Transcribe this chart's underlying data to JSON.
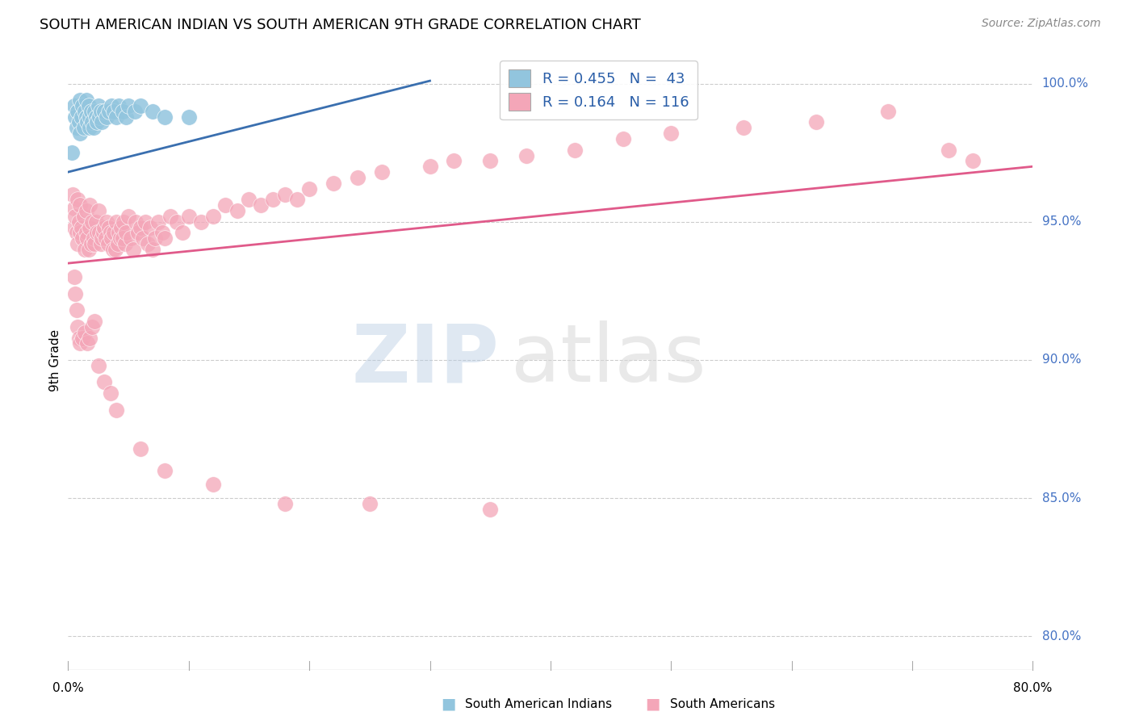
{
  "title": "SOUTH AMERICAN INDIAN VS SOUTH AMERICAN 9TH GRADE CORRELATION CHART",
  "source": "Source: ZipAtlas.com",
  "ylabel": "9th Grade",
  "xmin": 0.0,
  "xmax": 0.8,
  "ymin": 0.788,
  "ymax": 1.012,
  "yticks": [
    0.8,
    0.85,
    0.9,
    0.95,
    1.0
  ],
  "ytick_labels": [
    "80.0%",
    "85.0%",
    "90.0%",
    "95.0%",
    "100.0%"
  ],
  "legend_blue_label_r": "0.455",
  "legend_blue_label_n": "43",
  "legend_pink_label_r": "0.164",
  "legend_pink_label_n": "116",
  "legend_bottom_blue": "South American Indians",
  "legend_bottom_pink": "South Americans",
  "blue_color": "#92c5de",
  "pink_color": "#f4a6b8",
  "blue_line_color": "#3a6faf",
  "pink_line_color": "#e05a8a",
  "blue_scatter_x": [
    0.003,
    0.005,
    0.006,
    0.007,
    0.008,
    0.009,
    0.01,
    0.01,
    0.011,
    0.012,
    0.013,
    0.014,
    0.015,
    0.015,
    0.016,
    0.017,
    0.018,
    0.018,
    0.019,
    0.02,
    0.021,
    0.022,
    0.023,
    0.024,
    0.025,
    0.026,
    0.027,
    0.028,
    0.03,
    0.032,
    0.034,
    0.036,
    0.038,
    0.04,
    0.042,
    0.045,
    0.048,
    0.05,
    0.055,
    0.06,
    0.07,
    0.08,
    0.1
  ],
  "blue_scatter_y": [
    0.975,
    0.992,
    0.988,
    0.984,
    0.99,
    0.986,
    0.994,
    0.982,
    0.988,
    0.992,
    0.984,
    0.99,
    0.988,
    0.994,
    0.986,
    0.992,
    0.988,
    0.984,
    0.99,
    0.986,
    0.984,
    0.99,
    0.988,
    0.986,
    0.992,
    0.988,
    0.99,
    0.986,
    0.99,
    0.988,
    0.99,
    0.992,
    0.99,
    0.988,
    0.992,
    0.99,
    0.988,
    0.992,
    0.99,
    0.992,
    0.99,
    0.988,
    0.988
  ],
  "blue_line_x0": 0.0,
  "blue_line_x1": 0.3,
  "blue_line_y0": 0.968,
  "blue_line_y1": 1.001,
  "pink_line_x0": 0.0,
  "pink_line_x1": 0.8,
  "pink_line_y0": 0.935,
  "pink_line_y1": 0.97,
  "pink_scatter_x": [
    0.004,
    0.005,
    0.005,
    0.006,
    0.007,
    0.008,
    0.008,
    0.009,
    0.01,
    0.01,
    0.011,
    0.012,
    0.013,
    0.014,
    0.015,
    0.015,
    0.016,
    0.017,
    0.018,
    0.018,
    0.019,
    0.02,
    0.021,
    0.022,
    0.023,
    0.024,
    0.025,
    0.026,
    0.027,
    0.028,
    0.029,
    0.03,
    0.031,
    0.032,
    0.033,
    0.034,
    0.035,
    0.036,
    0.037,
    0.038,
    0.039,
    0.04,
    0.041,
    0.042,
    0.043,
    0.044,
    0.045,
    0.046,
    0.047,
    0.048,
    0.05,
    0.052,
    0.054,
    0.056,
    0.058,
    0.06,
    0.062,
    0.064,
    0.066,
    0.068,
    0.07,
    0.072,
    0.075,
    0.078,
    0.08,
    0.085,
    0.09,
    0.095,
    0.1,
    0.11,
    0.12,
    0.13,
    0.14,
    0.15,
    0.16,
    0.17,
    0.18,
    0.19,
    0.2,
    0.22,
    0.24,
    0.26,
    0.3,
    0.32,
    0.35,
    0.38,
    0.42,
    0.46,
    0.5,
    0.56,
    0.62,
    0.68,
    0.73,
    0.75,
    0.005,
    0.006,
    0.007,
    0.008,
    0.009,
    0.01,
    0.012,
    0.014,
    0.016,
    0.018,
    0.02,
    0.022,
    0.025,
    0.03,
    0.035,
    0.04,
    0.06,
    0.08,
    0.12,
    0.18,
    0.25,
    0.35
  ],
  "pink_scatter_y": [
    0.96,
    0.955,
    0.948,
    0.952,
    0.946,
    0.942,
    0.958,
    0.95,
    0.946,
    0.956,
    0.948,
    0.944,
    0.952,
    0.94,
    0.946,
    0.954,
    0.944,
    0.94,
    0.948,
    0.956,
    0.942,
    0.95,
    0.944,
    0.942,
    0.95,
    0.946,
    0.954,
    0.946,
    0.942,
    0.944,
    0.946,
    0.948,
    0.944,
    0.95,
    0.942,
    0.948,
    0.946,
    0.944,
    0.94,
    0.946,
    0.94,
    0.95,
    0.942,
    0.946,
    0.944,
    0.948,
    0.944,
    0.95,
    0.942,
    0.946,
    0.952,
    0.944,
    0.94,
    0.95,
    0.946,
    0.948,
    0.944,
    0.95,
    0.942,
    0.948,
    0.94,
    0.944,
    0.95,
    0.946,
    0.944,
    0.952,
    0.95,
    0.946,
    0.952,
    0.95,
    0.952,
    0.956,
    0.954,
    0.958,
    0.956,
    0.958,
    0.96,
    0.958,
    0.962,
    0.964,
    0.966,
    0.968,
    0.97,
    0.972,
    0.972,
    0.974,
    0.976,
    0.98,
    0.982,
    0.984,
    0.986,
    0.99,
    0.976,
    0.972,
    0.93,
    0.924,
    0.918,
    0.912,
    0.908,
    0.906,
    0.908,
    0.91,
    0.906,
    0.908,
    0.912,
    0.914,
    0.898,
    0.892,
    0.888,
    0.882,
    0.868,
    0.86,
    0.855,
    0.848,
    0.848,
    0.846
  ]
}
